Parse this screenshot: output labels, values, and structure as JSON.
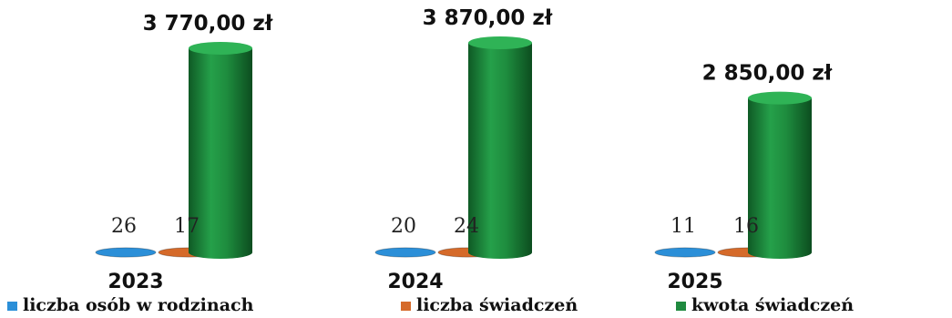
{
  "chart_data": {
    "type": "bar",
    "categories": [
      "2023",
      "2024",
      "2025"
    ],
    "series": [
      {
        "name": "liczba osób w rodzinach",
        "values": [
          26,
          20,
          11
        ],
        "labels": [
          "26",
          "20",
          "11"
        ],
        "color": "#2b8fd8"
      },
      {
        "name": "liczba świadczeń",
        "values": [
          17,
          24,
          16
        ],
        "labels": [
          "17",
          "24",
          "16"
        ],
        "color": "#d56a2a"
      },
      {
        "name": "kwota świadczeń",
        "values": [
          3770.0,
          3870.0,
          2850.0
        ],
        "labels": [
          "3 770,00 zł",
          "3 870,00 zł",
          "2 850,00 zł"
        ],
        "color": "#1f8a3f"
      }
    ],
    "legend_position": "bottom",
    "grid": false,
    "bar_shape": "3d-cylinder"
  }
}
